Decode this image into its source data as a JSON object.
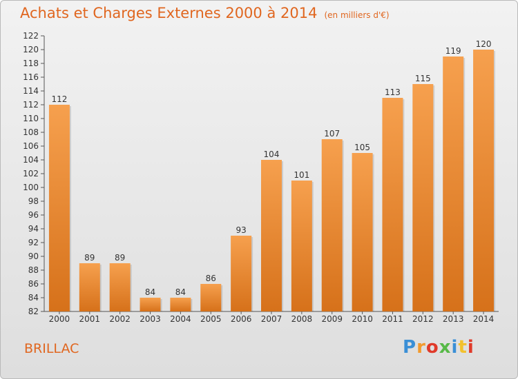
{
  "title": "Achats et Charges Externes 2000 à 2014",
  "unit": "(en milliers d'€)",
  "commune": "BRILLAC",
  "logo": {
    "letters": [
      {
        "ch": "P",
        "color": "#3a8fd6"
      },
      {
        "ch": "r",
        "color": "#f29a2e"
      },
      {
        "ch": "o",
        "color": "#e03a2a"
      },
      {
        "ch": "x",
        "color": "#57b947"
      },
      {
        "ch": "i",
        "color": "#3a8fd6"
      },
      {
        "ch": "t",
        "color": "#f2c12e"
      },
      {
        "ch": "i",
        "color": "#e03a2a"
      }
    ]
  },
  "colors": {
    "bar_light": "#f6a04e",
    "bar_dark": "#d6711a",
    "accent": "#e0661f"
  },
  "chart_data": {
    "type": "bar",
    "categories": [
      "2000",
      "2001",
      "2002",
      "2003",
      "2004",
      "2005",
      "2006",
      "2007",
      "2008",
      "2009",
      "2010",
      "2011",
      "2012",
      "2013",
      "2014"
    ],
    "values": [
      112,
      89,
      89,
      84,
      84,
      86,
      93,
      104,
      101,
      107,
      105,
      113,
      115,
      119,
      120
    ],
    "title": "Achats et Charges Externes 2000 à 2014",
    "xlabel": "",
    "ylabel": "",
    "ylim": [
      82,
      122
    ],
    "yticks": [
      82,
      84,
      86,
      88,
      90,
      92,
      94,
      96,
      98,
      100,
      102,
      104,
      106,
      108,
      110,
      112,
      114,
      116,
      118,
      120,
      122
    ],
    "grid": false,
    "legend": "none"
  }
}
